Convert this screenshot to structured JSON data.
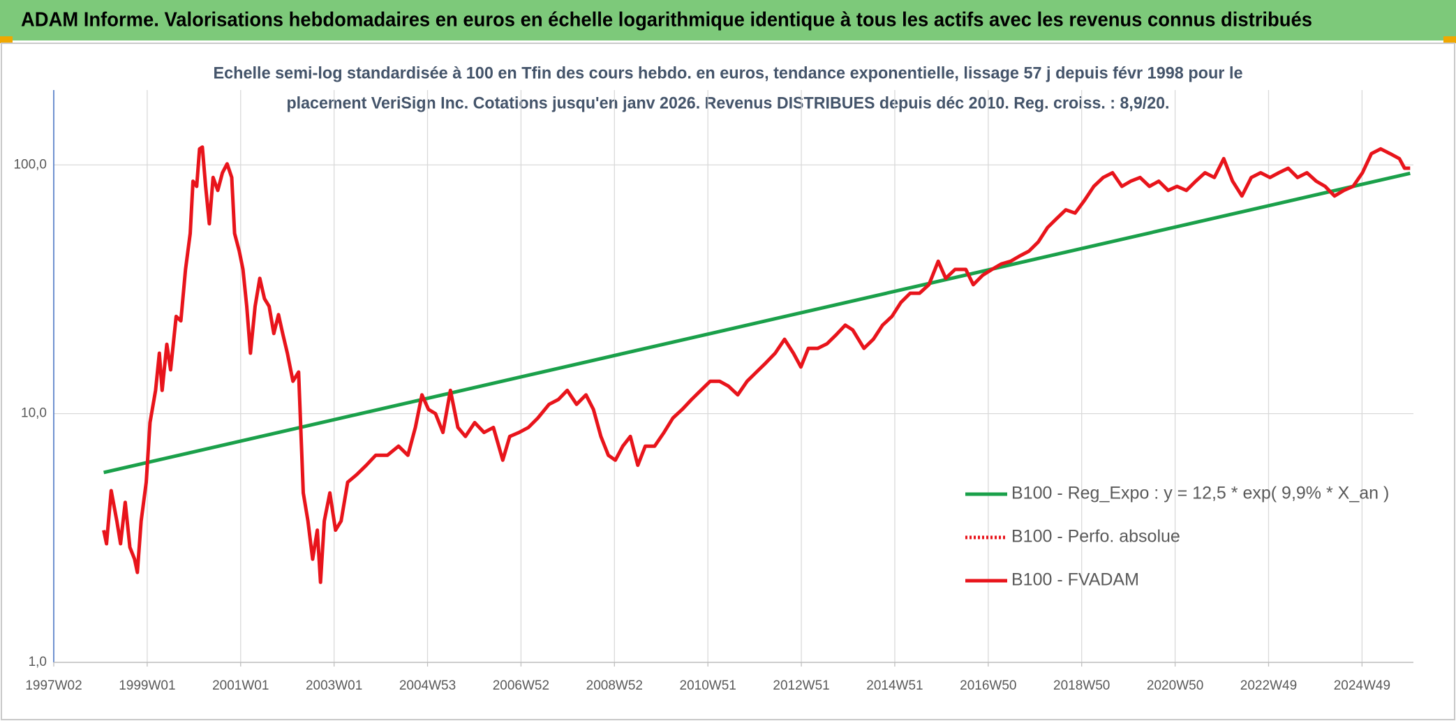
{
  "chart_data": {
    "type": "line",
    "title": "ADAM Informe. Valorisations hebdomadaires en euros en échelle logarithmique identique à tous les actifs avec les revenus connus distribués",
    "subtitle": [
      "Echelle semi-log standardisée à 100 en Tfin des cours hebdo. en euros, tendance exponentielle, lissage 57 j depuis févr 1998 pour le",
      "placement VeriSign Inc. Cotations jusqu'en janv 2026. Revenus DISTRIBUES depuis déc 2010. Reg. croiss. : 8,9/20."
    ],
    "yscale": "log",
    "grid": true,
    "legend": "right",
    "xlim": [
      1997.0,
      2026.1
    ],
    "ylim": [
      1,
      200
    ],
    "xticks": [
      {
        "value": 1997.0,
        "label": "1997W02"
      },
      {
        "value": 1999.0,
        "label": "1999W01"
      },
      {
        "value": 2001.0,
        "label": "2001W01"
      },
      {
        "value": 2003.0,
        "label": "2003W01"
      },
      {
        "value": 2005.0,
        "label": "2004W53"
      },
      {
        "value": 2007.0,
        "label": "2006W52"
      },
      {
        "value": 2009.0,
        "label": "2008W52"
      },
      {
        "value": 2011.0,
        "label": "2010W51"
      },
      {
        "value": 2013.0,
        "label": "2012W51"
      },
      {
        "value": 2015.0,
        "label": "2014W51"
      },
      {
        "value": 2017.0,
        "label": "2016W50"
      },
      {
        "value": 2019.0,
        "label": "2018W50"
      },
      {
        "value": 2021.0,
        "label": "2020W50"
      },
      {
        "value": 2023.0,
        "label": "2022W49"
      },
      {
        "value": 2025.0,
        "label": "2024W49"
      }
    ],
    "yticks": [
      {
        "value": 1,
        "label": "1,0"
      },
      {
        "value": 10,
        "label": "10,0"
      },
      {
        "value": 100,
        "label": "100,0"
      }
    ],
    "series": [
      {
        "name": "B100 - Reg_Expo : y = 12,5 * exp( 9,9% *  X_an )",
        "color": "#1aa04a",
        "dash": "solid",
        "x": [
          1998.07,
          2026.03
        ],
        "values": [
          5.8,
          92.5
        ]
      },
      {
        "name": "B100 - Perfo. absolue",
        "color": "#e8141b",
        "dash": "dotted",
        "x": [],
        "values": []
      },
      {
        "name": "B100 - FVADAM",
        "color": "#e8141b",
        "dash": "solid",
        "x": [
          1998.07,
          1998.13,
          1998.23,
          1998.35,
          1998.43,
          1998.53,
          1998.63,
          1998.73,
          1998.79,
          1998.87,
          1998.98,
          1999.06,
          1999.18,
          1999.26,
          1999.32,
          1999.42,
          1999.5,
          1999.62,
          1999.72,
          1999.82,
          1999.92,
          1999.98,
          2000.06,
          2000.12,
          2000.18,
          2000.25,
          2000.33,
          2000.41,
          2000.51,
          2000.61,
          2000.71,
          2000.81,
          2000.87,
          2000.97,
          2001.05,
          2001.13,
          2001.21,
          2001.31,
          2001.41,
          2001.51,
          2001.61,
          2001.71,
          2001.81,
          2001.9,
          2002.0,
          2002.12,
          2002.24,
          2002.34,
          2002.44,
          2002.54,
          2002.64,
          2002.71,
          2002.79,
          2002.91,
          2003.03,
          2003.15,
          2003.29,
          2003.49,
          2003.69,
          2003.89,
          2004.14,
          2004.38,
          2004.58,
          2004.74,
          2004.88,
          2005.02,
          2005.17,
          2005.33,
          2005.49,
          2005.65,
          2005.81,
          2006.01,
          2006.21,
          2006.41,
          2006.61,
          2006.76,
          2006.96,
          2007.16,
          2007.36,
          2007.6,
          2007.8,
          2007.99,
          2008.19,
          2008.39,
          2008.55,
          2008.71,
          2008.87,
          2009.02,
          2009.18,
          2009.34,
          2009.5,
          2009.66,
          2009.86,
          2010.06,
          2010.25,
          2010.45,
          2010.65,
          2010.85,
          2011.05,
          2011.25,
          2011.44,
          2011.64,
          2011.84,
          2012.04,
          2012.24,
          2012.44,
          2012.64,
          2012.83,
          2012.99,
          2013.15,
          2013.35,
          2013.55,
          2013.75,
          2013.94,
          2014.1,
          2014.34,
          2014.54,
          2014.74,
          2014.94,
          2015.13,
          2015.33,
          2015.53,
          2015.73,
          2015.93,
          2016.09,
          2016.29,
          2016.52,
          2016.68,
          2016.88,
          2017.08,
          2017.28,
          2017.48,
          2017.67,
          2017.87,
          2018.07,
          2018.27,
          2018.47,
          2018.66,
          2018.86,
          2019.06,
          2019.26,
          2019.46,
          2019.66,
          2019.86,
          2020.05,
          2020.25,
          2020.45,
          2020.65,
          2020.85,
          2021.04,
          2021.24,
          2021.44,
          2021.64,
          2021.84,
          2022.04,
          2022.23,
          2022.43,
          2022.63,
          2022.83,
          2023.03,
          2023.22,
          2023.42,
          2023.62,
          2023.82,
          2024.02,
          2024.21,
          2024.41,
          2024.61,
          2024.81,
          2025.01,
          2025.2,
          2025.4,
          2025.6,
          2025.8,
          2025.91,
          2026.03
        ],
        "values": [
          3.4,
          3.0,
          4.9,
          3.7,
          3.0,
          4.4,
          2.9,
          2.6,
          2.3,
          3.7,
          5.3,
          9.2,
          12.4,
          17.5,
          12.4,
          19,
          15,
          24.6,
          23.6,
          38,
          53,
          86,
          82,
          116,
          118,
          82,
          58,
          89,
          79,
          93,
          101,
          89,
          53,
          45,
          38,
          27,
          17.5,
          27,
          35,
          29,
          27,
          21,
          25,
          21,
          17.5,
          13.5,
          14.7,
          4.8,
          3.7,
          2.6,
          3.4,
          2.1,
          3.7,
          4.8,
          3.4,
          3.7,
          5.3,
          5.7,
          6.2,
          6.8,
          6.8,
          7.4,
          6.8,
          8.8,
          11.9,
          10.4,
          10,
          8.4,
          12.4,
          8.8,
          8.1,
          9.2,
          8.4,
          8.8,
          6.5,
          8.1,
          8.4,
          8.8,
          9.6,
          10.9,
          11.4,
          12.4,
          10.9,
          11.9,
          10.4,
          8.1,
          6.8,
          6.5,
          7.4,
          8.1,
          6.2,
          7.4,
          7.4,
          8.4,
          9.6,
          10.4,
          11.4,
          12.4,
          13.5,
          13.5,
          12.9,
          11.9,
          13.5,
          14.7,
          16,
          17.5,
          19.9,
          17.5,
          15.4,
          18.3,
          18.3,
          19.1,
          20.8,
          22.7,
          21.7,
          18.3,
          19.9,
          22.7,
          24.6,
          28,
          30.5,
          30.5,
          33,
          41,
          35,
          38,
          38,
          33,
          36,
          38,
          40,
          41,
          43,
          45,
          49,
          56,
          61,
          66,
          64,
          72,
          82,
          89,
          93,
          82,
          86,
          89,
          82,
          86,
          79,
          82,
          79,
          86,
          93,
          89,
          106,
          86,
          75,
          89,
          93,
          89,
          93,
          97,
          89,
          93,
          86,
          82,
          75,
          79,
          82,
          93,
          111,
          116,
          111,
          106,
          97,
          97
        ]
      }
    ]
  }
}
